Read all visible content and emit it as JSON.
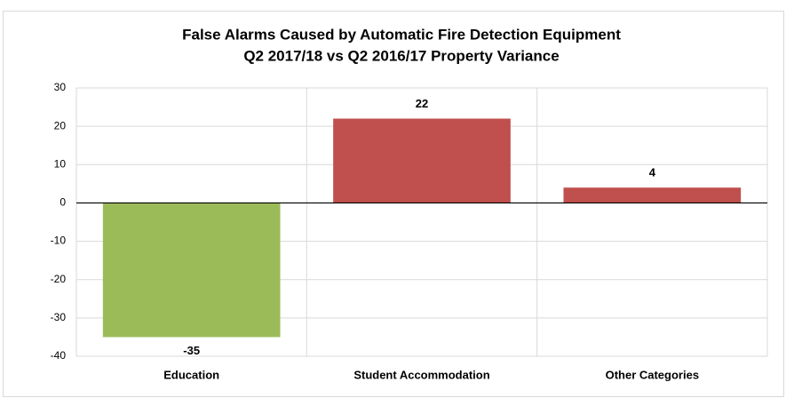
{
  "chart_data": {
    "type": "bar",
    "title": [
      "False Alarms Caused by Automatic Fire Detection Equipment",
      "Q2 2017/18 vs Q2 2016/17 Property Variance"
    ],
    "categories": [
      "Education",
      "Student Accommodation",
      "Other Categories"
    ],
    "values": [
      -35,
      22,
      4
    ],
    "colors": [
      "#9bbb59",
      "#c0504d",
      "#c0504d"
    ],
    "ylim": [
      -40,
      30
    ],
    "yticks": [
      -40,
      -30,
      -20,
      -10,
      0,
      10,
      20,
      30
    ],
    "grid": true
  }
}
